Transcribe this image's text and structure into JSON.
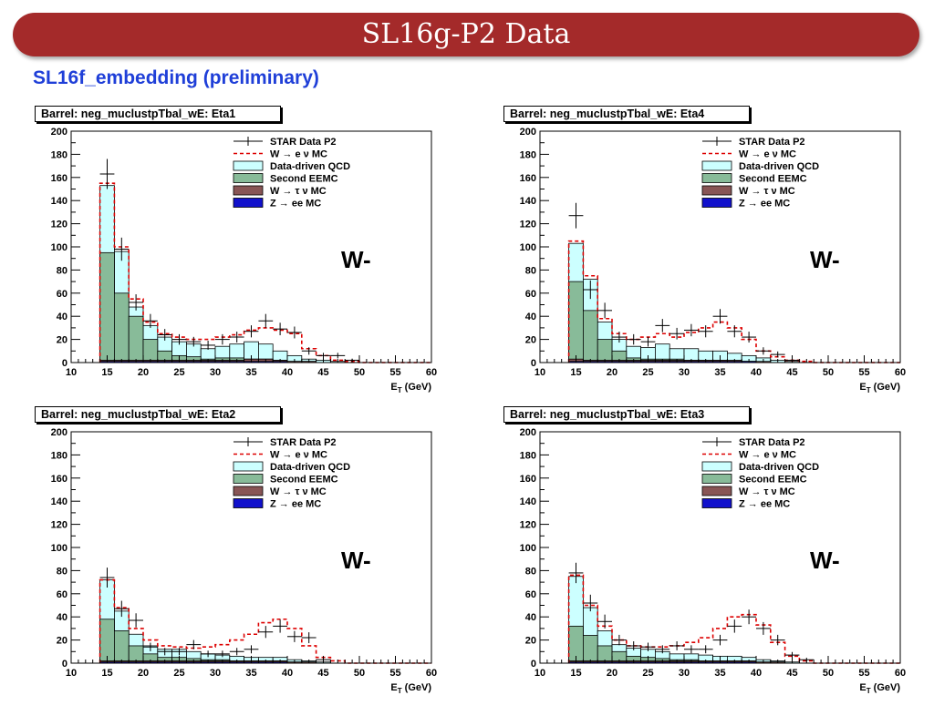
{
  "header": {
    "title": "SL16g-P2 Data"
  },
  "subtitle": "SL16f_embedding (preliminary)",
  "legend": {
    "star": "STAR Data P2",
    "wenu": "W → e ν MC",
    "qcd": "Data-driven QCD",
    "eemc": "Second EEMC",
    "wtau": "W → τ ν MC",
    "zee": "Z → ee MC"
  },
  "colors": {
    "header": "#a42a2a",
    "subtitle": "#1f3fd8",
    "qcd": "#ccffff",
    "eemc": "#88bb99",
    "wtau": "#885555",
    "zee": "#1111cc",
    "wenu": "#dd0000"
  },
  "chart_data": [
    {
      "type": "bar",
      "title": "Barrel: neg_muclustpTbal_wE: Eta1",
      "xlabel": "E_T (GeV)",
      "ylabel": "",
      "annotation": "W-",
      "xlim": [
        10,
        60
      ],
      "ylim": [
        0,
        200
      ],
      "xticks": [
        10,
        15,
        20,
        25,
        30,
        35,
        40,
        45,
        50,
        55,
        60
      ],
      "yticks": [
        0,
        20,
        40,
        60,
        80,
        100,
        120,
        140,
        160,
        180,
        200
      ],
      "bin_edges": [
        14,
        16,
        18,
        20,
        22,
        24,
        26,
        28,
        30,
        32,
        34,
        36,
        38,
        40,
        42,
        44,
        46,
        48,
        50,
        52,
        54,
        56,
        58,
        60
      ],
      "series": [
        {
          "name": "STAR Data P2",
          "values": [
            163,
            98,
            52,
            36,
            24,
            20,
            18,
            15,
            20,
            22,
            27,
            36,
            29,
            26,
            10,
            6,
            6,
            2,
            0,
            0,
            0,
            0,
            0
          ],
          "errors": [
            13,
            10,
            7,
            6,
            5,
            4.5,
            4.2,
            3.9,
            4.5,
            4.7,
            5.2,
            6,
            5.4,
            5.1,
            3.2,
            2.4,
            2.4,
            1.4,
            0,
            0,
            0,
            0,
            0
          ]
        },
        {
          "name": "W → e ν MC",
          "values": [
            155,
            100,
            55,
            35,
            25,
            22,
            20,
            20,
            22,
            24,
            28,
            30,
            28,
            25,
            12,
            6,
            2,
            1,
            0,
            0,
            0,
            0,
            0
          ]
        },
        {
          "name": "Data-driven QCD",
          "values": [
            153,
            96,
            48,
            32,
            22,
            18,
            16,
            12,
            14,
            16,
            18,
            16,
            10,
            6,
            3,
            2,
            1,
            0,
            0,
            0,
            0,
            0,
            0
          ]
        },
        {
          "name": "Second EEMC",
          "values": [
            95,
            60,
            40,
            20,
            10,
            6,
            5,
            3,
            4,
            4,
            3,
            3,
            2,
            1,
            1,
            0,
            0,
            0,
            0,
            0,
            0,
            0,
            0
          ]
        },
        {
          "name": "W → τ ν MC",
          "values": [
            2,
            2,
            2,
            2,
            2,
            2,
            2,
            2,
            2,
            2,
            3,
            3,
            2,
            1,
            1,
            0,
            0,
            0,
            0,
            0,
            0,
            0,
            0
          ]
        },
        {
          "name": "Z → ee MC",
          "values": [
            1,
            1,
            1,
            1,
            1,
            1,
            1,
            1,
            1,
            1,
            1,
            1,
            1,
            0,
            0,
            0,
            0,
            0,
            0,
            0,
            0,
            0,
            0
          ]
        }
      ]
    },
    {
      "type": "bar",
      "title": "Barrel: neg_muclustpTbal_wE: Eta4",
      "xlabel": "E_T (GeV)",
      "ylabel": "",
      "annotation": "W-",
      "xlim": [
        10,
        60
      ],
      "ylim": [
        0,
        200
      ],
      "xticks": [
        10,
        15,
        20,
        25,
        30,
        35,
        40,
        45,
        50,
        55,
        60
      ],
      "yticks": [
        0,
        20,
        40,
        60,
        80,
        100,
        120,
        140,
        160,
        180,
        200
      ],
      "bin_edges": [
        14,
        16,
        18,
        20,
        22,
        24,
        26,
        28,
        30,
        32,
        34,
        36,
        38,
        40,
        42,
        44,
        46,
        48,
        50,
        52,
        54,
        56,
        58,
        60
      ],
      "series": [
        {
          "name": "STAR Data P2",
          "values": [
            127,
            63,
            45,
            22,
            20,
            18,
            32,
            25,
            28,
            27,
            40,
            27,
            22,
            10,
            7,
            2,
            0,
            0,
            0,
            0,
            0,
            0,
            0
          ],
          "errors": [
            11,
            8,
            6.7,
            4.7,
            4.5,
            4.2,
            5.7,
            5,
            5.3,
            5.2,
            6.3,
            5.2,
            4.7,
            3.2,
            2.6,
            1.4,
            0,
            0,
            0,
            0,
            0,
            0,
            0
          ]
        },
        {
          "name": "W → e ν MC",
          "values": [
            105,
            75,
            38,
            25,
            20,
            22,
            25,
            22,
            26,
            30,
            35,
            30,
            20,
            10,
            5,
            2,
            1,
            0,
            0,
            0,
            0,
            0,
            0
          ]
        },
        {
          "name": "Data-driven QCD",
          "values": [
            103,
            72,
            35,
            20,
            14,
            13,
            16,
            12,
            12,
            10,
            10,
            8,
            6,
            4,
            2,
            1,
            0,
            0,
            0,
            0,
            0,
            0,
            0
          ]
        },
        {
          "name": "Second EEMC",
          "values": [
            70,
            45,
            20,
            10,
            4,
            3,
            3,
            3,
            2,
            2,
            2,
            1,
            1,
            0,
            0,
            0,
            0,
            0,
            0,
            0,
            0,
            0,
            0
          ]
        },
        {
          "name": "W → τ ν MC",
          "values": [
            3,
            2,
            2,
            2,
            2,
            2,
            2,
            2,
            2,
            2,
            2,
            2,
            1,
            1,
            0,
            0,
            0,
            0,
            0,
            0,
            0,
            0,
            0
          ]
        },
        {
          "name": "Z → ee MC",
          "values": [
            1,
            1,
            1,
            1,
            1,
            1,
            1,
            1,
            1,
            1,
            1,
            1,
            1,
            0,
            0,
            0,
            0,
            0,
            0,
            0,
            0,
            0,
            0
          ]
        }
      ]
    },
    {
      "type": "bar",
      "title": "Barrel: neg_muclustpTbal_wE: Eta2",
      "xlabel": "E_T (GeV)",
      "ylabel": "",
      "annotation": "W-",
      "xlim": [
        10,
        60
      ],
      "ylim": [
        0,
        200
      ],
      "xticks": [
        10,
        15,
        20,
        25,
        30,
        35,
        40,
        45,
        50,
        55,
        60
      ],
      "yticks": [
        0,
        20,
        40,
        60,
        80,
        100,
        120,
        140,
        160,
        180,
        200
      ],
      "bin_edges": [
        14,
        16,
        18,
        20,
        22,
        24,
        26,
        28,
        30,
        32,
        34,
        36,
        38,
        40,
        42,
        44,
        46,
        48,
        50,
        52,
        54,
        56,
        58,
        60
      ],
      "series": [
        {
          "name": "STAR Data P2",
          "values": [
            74,
            47,
            37,
            14,
            10,
            10,
            16,
            8,
            8,
            10,
            12,
            27,
            32,
            23,
            22,
            3,
            0,
            0,
            0,
            0,
            0,
            0,
            0
          ],
          "errors": [
            8.6,
            6.9,
            6.1,
            3.7,
            3.2,
            3.2,
            4,
            2.8,
            2.8,
            3.2,
            3.5,
            5.2,
            5.7,
            4.8,
            4.7,
            1.7,
            0,
            0,
            0,
            0,
            0,
            0,
            0
          ]
        },
        {
          "name": "W → e ν MC",
          "values": [
            72,
            48,
            30,
            20,
            15,
            14,
            13,
            14,
            16,
            20,
            25,
            35,
            38,
            30,
            15,
            5,
            2,
            0,
            0,
            0,
            0,
            0,
            0
          ]
        },
        {
          "name": "Data-driven QCD",
          "values": [
            72,
            45,
            25,
            15,
            12,
            12,
            10,
            8,
            7,
            6,
            5,
            5,
            5,
            3,
            2,
            1,
            0,
            0,
            0,
            0,
            0,
            0,
            0
          ]
        },
        {
          "name": "Second EEMC",
          "values": [
            38,
            28,
            15,
            8,
            5,
            5,
            4,
            3,
            3,
            2,
            2,
            2,
            2,
            1,
            1,
            0,
            0,
            0,
            0,
            0,
            0,
            0,
            0
          ]
        },
        {
          "name": "W → τ ν MC",
          "values": [
            2,
            2,
            2,
            2,
            2,
            2,
            2,
            2,
            2,
            2,
            2,
            2,
            2,
            1,
            1,
            0,
            0,
            0,
            0,
            0,
            0,
            0,
            0
          ]
        },
        {
          "name": "Z → ee MC",
          "values": [
            1,
            1,
            1,
            1,
            1,
            1,
            1,
            1,
            1,
            1,
            1,
            1,
            1,
            0,
            0,
            0,
            0,
            0,
            0,
            0,
            0,
            0,
            0
          ]
        }
      ]
    },
    {
      "type": "bar",
      "title": "Barrel: neg_muclustpTbal_wE: Eta3",
      "xlabel": "E_T (GeV)",
      "ylabel": "",
      "annotation": "W-",
      "xlim": [
        10,
        60
      ],
      "ylim": [
        0,
        200
      ],
      "xticks": [
        10,
        15,
        20,
        25,
        30,
        35,
        40,
        45,
        50,
        55,
        60
      ],
      "yticks": [
        0,
        20,
        40,
        60,
        80,
        100,
        120,
        140,
        160,
        180,
        200
      ],
      "bin_edges": [
        14,
        16,
        18,
        20,
        22,
        24,
        26,
        28,
        30,
        32,
        34,
        36,
        38,
        40,
        42,
        44,
        46,
        48,
        50,
        52,
        54,
        56,
        58,
        60
      ],
      "series": [
        {
          "name": "STAR Data P2",
          "values": [
            78,
            52,
            36,
            20,
            15,
            14,
            12,
            15,
            12,
            12,
            20,
            32,
            40,
            30,
            20,
            7,
            3,
            0,
            0,
            0,
            0,
            0,
            0
          ],
          "errors": [
            8.8,
            7.2,
            6,
            4.5,
            3.9,
            3.7,
            3.5,
            3.9,
            3.5,
            3.5,
            4.5,
            5.7,
            6.3,
            5.5,
            4.5,
            2.6,
            1.7,
            0,
            0,
            0,
            0,
            0,
            0
          ]
        },
        {
          "name": "W → e ν MC",
          "values": [
            76,
            50,
            32,
            20,
            15,
            14,
            14,
            15,
            18,
            22,
            30,
            40,
            42,
            33,
            18,
            6,
            2,
            0,
            0,
            0,
            0,
            0,
            0
          ]
        },
        {
          "name": "Data-driven QCD",
          "values": [
            75,
            48,
            28,
            16,
            13,
            12,
            10,
            8,
            8,
            7,
            6,
            6,
            5,
            3,
            2,
            1,
            0,
            0,
            0,
            0,
            0,
            0,
            0
          ]
        },
        {
          "name": "Second EEMC",
          "values": [
            32,
            24,
            15,
            10,
            6,
            5,
            4,
            3,
            3,
            2,
            2,
            2,
            2,
            1,
            1,
            0,
            0,
            0,
            0,
            0,
            0,
            0,
            0
          ]
        },
        {
          "name": "W → τ ν MC",
          "values": [
            2,
            2,
            2,
            2,
            2,
            2,
            2,
            2,
            2,
            2,
            2,
            2,
            2,
            1,
            1,
            0,
            0,
            0,
            0,
            0,
            0,
            0,
            0
          ]
        },
        {
          "name": "Z → ee MC",
          "values": [
            1,
            1,
            1,
            1,
            1,
            1,
            1,
            1,
            1,
            1,
            1,
            1,
            1,
            0,
            0,
            0,
            0,
            0,
            0,
            0,
            0,
            0,
            0
          ]
        }
      ]
    }
  ]
}
